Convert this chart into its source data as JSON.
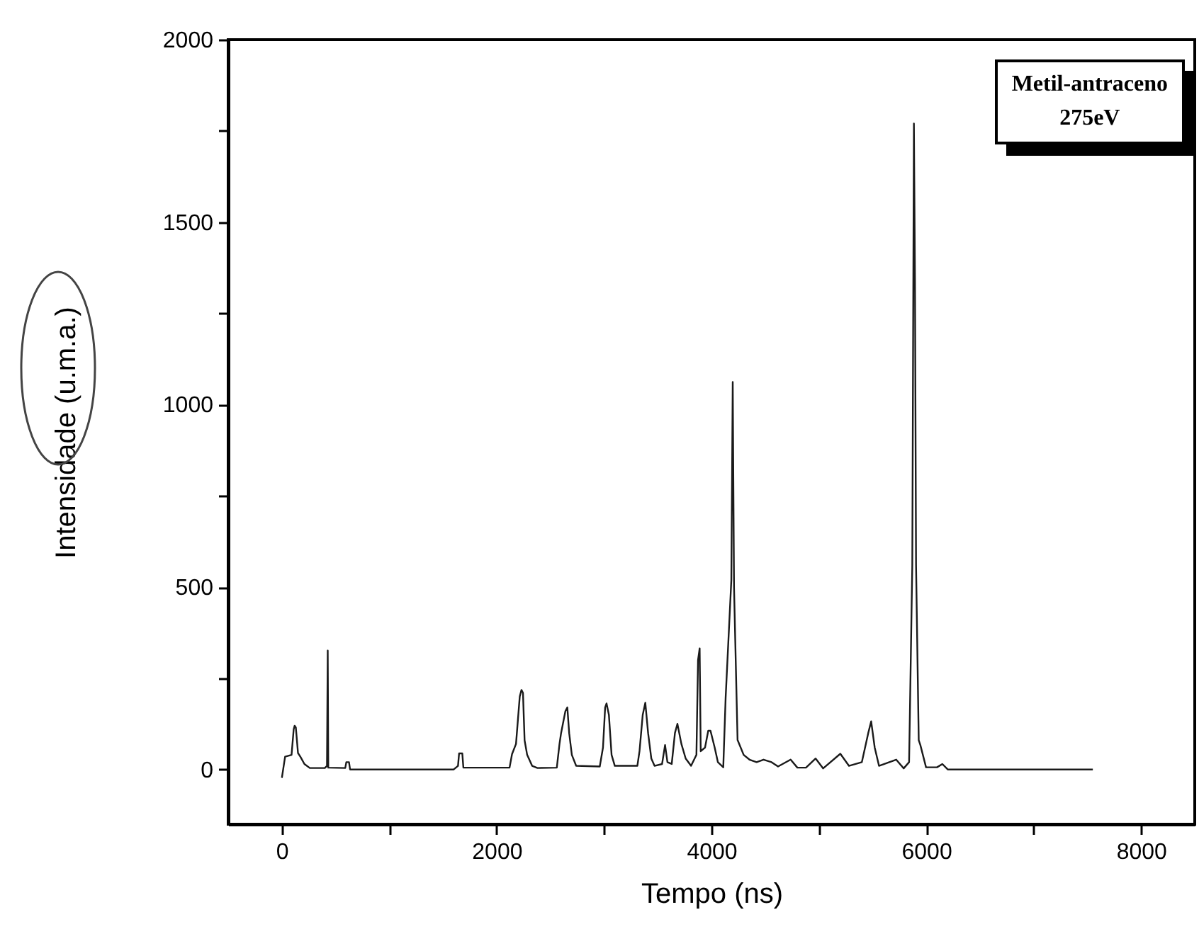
{
  "chart_data": {
    "type": "line",
    "xlabel": "Tempo (ns)",
    "ylabel": "Intensidade (u.m.a.)",
    "annotations": [
      "Metil-antraceno",
      "275eV"
    ],
    "xlim": [
      -500,
      8500
    ],
    "ylim": [
      -150,
      2000
    ],
    "xticks": [
      0,
      {
        "value": 1000,
        "label": null
      },
      2000,
      {
        "value": 3000,
        "label": null
      },
      4000,
      {
        "value": 5000,
        "label": null
      },
      6000,
      {
        "value": 7000,
        "label": null
      },
      8000
    ],
    "yticks": [
      0,
      {
        "value": 250,
        "label": null
      },
      500,
      {
        "value": 750,
        "label": null
      },
      1000,
      {
        "value": 1250,
        "label": null
      },
      1500,
      {
        "value": 1750,
        "label": null
      },
      2000
    ],
    "grid": false,
    "marker": "none",
    "line_style": "solid",
    "series": [
      {
        "color": "#1a1a1a",
        "x": [
          0,
          30,
          90,
          110,
          119,
          130,
          150,
          172,
          210,
          260,
          400,
          420,
          427,
          432,
          590,
          600,
          625,
          635,
          1600,
          1640,
          1650,
          1680,
          1690,
          2120,
          2143,
          2180,
          2215,
          2231,
          2245,
          2260,
          2284,
          2330,
          2380,
          2560,
          2585,
          2600,
          2640,
          2658,
          2675,
          2700,
          2740,
          2960,
          2990,
          3010,
          3023,
          3045,
          3070,
          3100,
          3310,
          3330,
          3360,
          3384,
          3410,
          3440,
          3470,
          3540,
          3568,
          3590,
          3630,
          3660,
          3683,
          3720,
          3760,
          3810,
          3860,
          3875,
          3890,
          3900,
          3940,
          3970,
          3991,
          4030,
          4060,
          4110,
          4132,
          4185,
          4198,
          4210,
          4243,
          4300,
          4354,
          4420,
          4485,
          4560,
          4620,
          4737,
          4800,
          4880,
          4970,
          5040,
          5200,
          5280,
          5400,
          5460,
          5487,
          5520,
          5560,
          5720,
          5790,
          5840,
          5848,
          5870,
          5885,
          5895,
          5905,
          5930,
          5945,
          5998,
          6100,
          6150,
          6200,
          7551
        ],
        "values": [
          -23,
          35,
          40,
          110,
          120,
          115,
          45,
          35,
          15,
          4,
          4,
          10,
          326,
          5,
          4,
          20,
          20,
          0,
          0,
          10,
          44,
          44,
          5,
          5,
          42,
          70,
          200,
          218,
          210,
          80,
          40,
          10,
          4,
          5,
          70,
          100,
          160,
          170,
          100,
          40,
          10,
          8,
          60,
          170,
          181,
          150,
          40,
          10,
          10,
          50,
          150,
          183,
          100,
          30,
          10,
          15,
          67,
          20,
          15,
          100,
          125,
          70,
          30,
          10,
          40,
          300,
          332,
          50,
          60,
          106,
          106,
          60,
          20,
          6,
          197,
          519,
          1062,
          500,
          81,
          40,
          27,
          20,
          27,
          20,
          8,
          27,
          5,
          5,
          30,
          3,
          43,
          10,
          20,
          100,
          132,
          60,
          10,
          27,
          3,
          20,
          158,
          560,
          1770,
          1340,
          560,
          80,
          67,
          6,
          6,
          15,
          0,
          0
        ]
      }
    ]
  }
}
